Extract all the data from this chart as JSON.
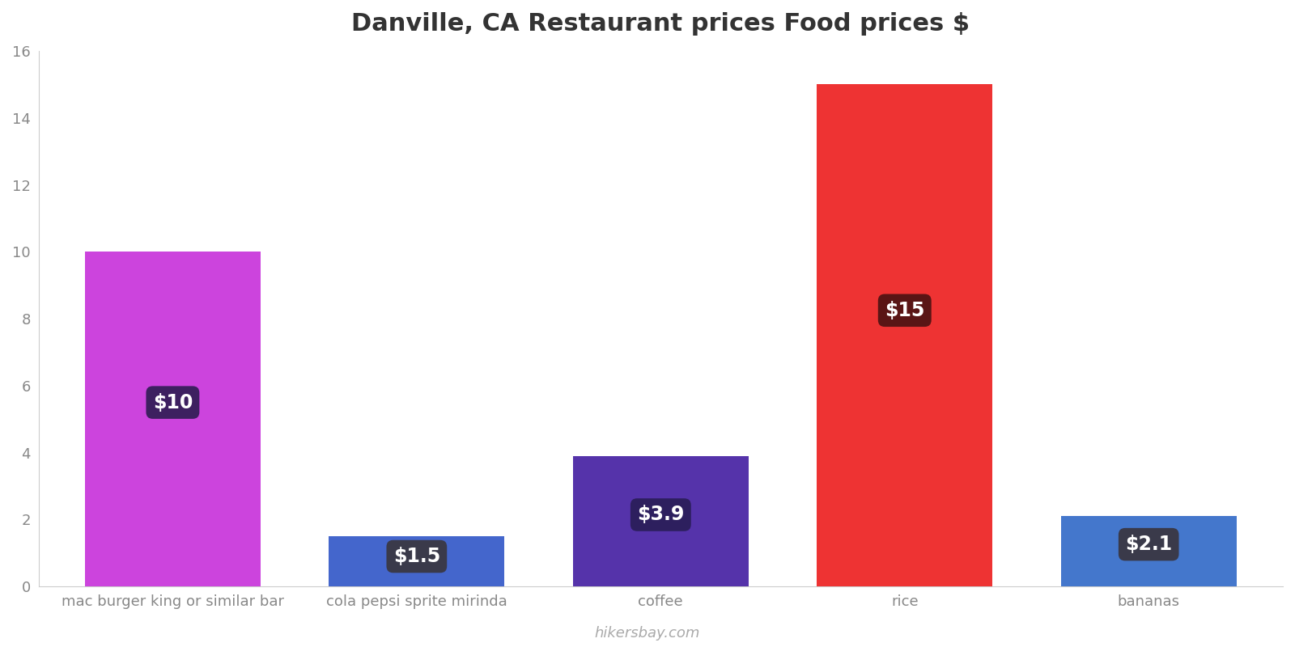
{
  "title": "Danville, CA Restaurant prices Food prices $",
  "categories": [
    "mac burger king or similar bar",
    "cola pepsi sprite mirinda",
    "coffee",
    "rice",
    "bananas"
  ],
  "values": [
    10,
    1.5,
    3.9,
    15,
    2.1
  ],
  "bar_colors": [
    "#cc44dd",
    "#4466cc",
    "#5533aa",
    "#ee3333",
    "#4477cc"
  ],
  "label_texts": [
    "$10",
    "$1.5",
    "$3.9",
    "$15",
    "$2.1"
  ],
  "label_box_colors": [
    "#3d2060",
    "#3a3a4a",
    "#2d1f5e",
    "#5a1515",
    "#3a3a4a"
  ],
  "ylim": [
    0,
    16
  ],
  "yticks": [
    0,
    2,
    4,
    6,
    8,
    10,
    12,
    14,
    16
  ],
  "watermark": "hikersbay.com",
  "background_color": "#ffffff",
  "title_fontsize": 22,
  "tick_fontsize": 13,
  "label_fontsize": 17,
  "watermark_fontsize": 13,
  "bar_width": 0.72
}
